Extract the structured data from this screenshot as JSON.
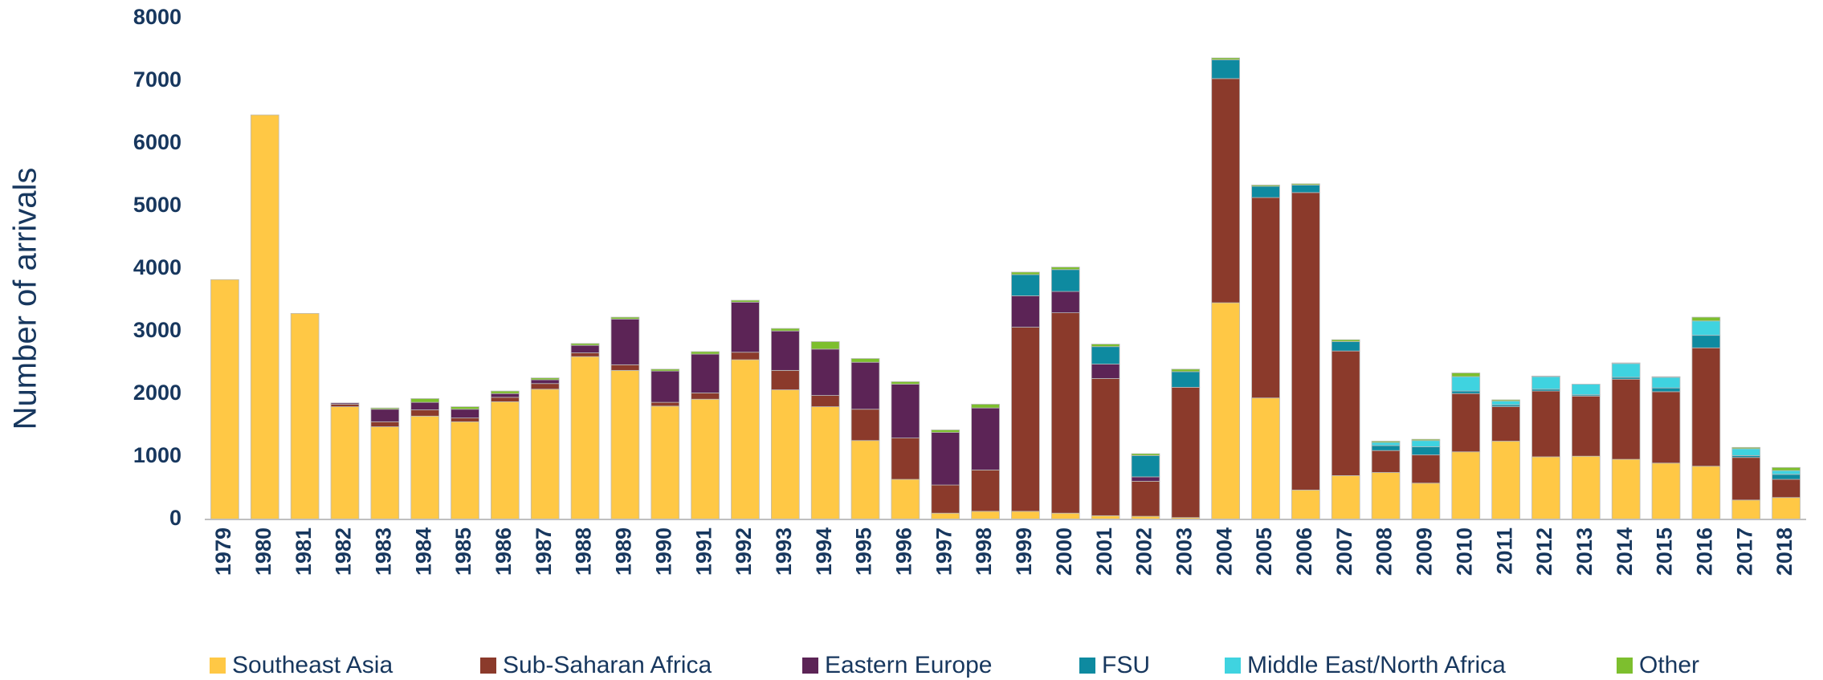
{
  "chart_data": {
    "type": "stacked_bar",
    "y_label": "Number of arrivals",
    "categories": [
      "1979",
      "1980",
      "1981",
      "1982",
      "1983",
      "1984",
      "1985",
      "1986",
      "1987",
      "1988",
      "1989",
      "1990",
      "1991",
      "1992",
      "1993",
      "1994",
      "1995",
      "1996",
      "1997",
      "1998",
      "1999",
      "2000",
      "2001",
      "2002",
      "2003",
      "2004",
      "2005",
      "2006",
      "2007",
      "2008",
      "2009",
      "2010",
      "2011",
      "2012",
      "2013",
      "2014",
      "2015",
      "2016",
      "2017",
      "2018"
    ],
    "series": [
      {
        "name": "Southeast Asia",
        "color": "#ffc845",
        "values": [
          3830,
          6460,
          3290,
          1800,
          1480,
          1650,
          1560,
          1880,
          2080,
          2600,
          2380,
          1810,
          1920,
          2550,
          2070,
          1800,
          1260,
          640,
          100,
          130,
          130,
          100,
          60,
          50,
          30,
          3460,
          1940,
          470,
          700,
          750,
          580,
          1080,
          1250,
          1000,
          1010,
          960,
          900,
          850,
          310,
          350
        ]
      },
      {
        "name": "Sub-Saharan Africa",
        "color": "#8b3a2b",
        "values": [
          0,
          0,
          0,
          40,
          80,
          100,
          60,
          70,
          90,
          60,
          90,
          60,
          100,
          120,
          310,
          180,
          500,
          660,
          450,
          660,
          2940,
          3200,
          2190,
          560,
          2080,
          3580,
          3200,
          4750,
          1990,
          350,
          450,
          930,
          550,
          1050,
          960,
          1280,
          1140,
          1890,
          680,
          290
        ]
      },
      {
        "name": "Eastern Europe",
        "color": "#5c2456",
        "values": [
          0,
          0,
          0,
          20,
          200,
          120,
          140,
          60,
          60,
          120,
          730,
          500,
          620,
          800,
          630,
          740,
          750,
          860,
          840,
          990,
          500,
          340,
          230,
          70,
          0,
          0,
          0,
          0,
          0,
          0,
          0,
          0,
          0,
          0,
          0,
          0,
          0,
          0,
          0,
          0
        ]
      },
      {
        "name": "FSU",
        "color": "#0e8aa0",
        "values": [
          0,
          0,
          0,
          0,
          0,
          0,
          0,
          0,
          0,
          0,
          0,
          0,
          0,
          0,
          0,
          0,
          0,
          0,
          0,
          0,
          340,
          350,
          280,
          340,
          250,
          300,
          180,
          120,
          150,
          80,
          130,
          40,
          30,
          30,
          20,
          30,
          60,
          200,
          30,
          80
        ]
      },
      {
        "name": "Middle East/North Africa",
        "color": "#3fd3e0",
        "values": [
          0,
          0,
          0,
          0,
          0,
          0,
          0,
          0,
          0,
          0,
          0,
          0,
          0,
          0,
          0,
          0,
          0,
          0,
          0,
          0,
          0,
          0,
          0,
          0,
          0,
          0,
          0,
          0,
          0,
          50,
          100,
          230,
          60,
          200,
          170,
          220,
          170,
          230,
          110,
          60
        ]
      },
      {
        "name": "Other",
        "color": "#7dbf2e",
        "values": [
          0,
          0,
          0,
          0,
          20,
          60,
          40,
          40,
          30,
          30,
          30,
          30,
          40,
          30,
          40,
          120,
          60,
          40,
          40,
          60,
          40,
          40,
          40,
          30,
          40,
          30,
          20,
          20,
          30,
          20,
          20,
          60,
          20,
          10,
          0,
          10,
          10,
          60,
          20,
          50
        ]
      }
    ],
    "ylim": [
      0,
      8000
    ],
    "yticks": [
      0,
      1000,
      2000,
      3000,
      4000,
      5000,
      6000,
      7000,
      8000
    ]
  }
}
